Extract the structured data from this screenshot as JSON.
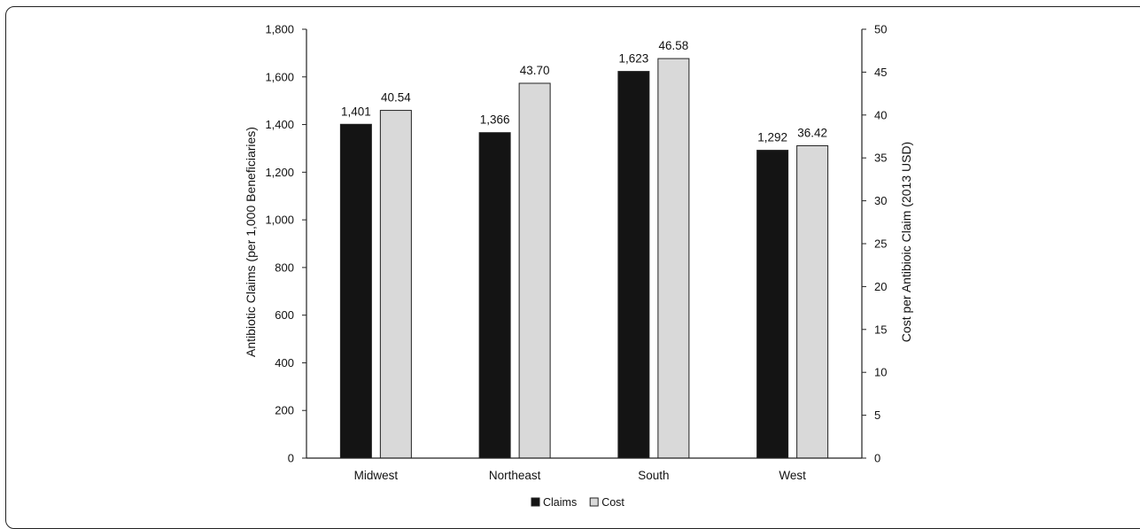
{
  "chart_data": {
    "type": "bar",
    "categories": [
      "Midwest",
      "Northeast",
      "South",
      "West"
    ],
    "series": [
      {
        "name": "Claims",
        "axis": "left",
        "color": "#141414",
        "values": [
          1401,
          1366,
          1623,
          1292
        ],
        "labels": [
          "1,401",
          "1,366",
          "1,623",
          "1,292"
        ]
      },
      {
        "name": "Cost",
        "axis": "right",
        "color": "#d9d9d9",
        "values": [
          40.54,
          43.7,
          46.58,
          36.42
        ],
        "labels": [
          "40.54",
          "43.70",
          "46.58",
          "36.42"
        ]
      }
    ],
    "ylabel": "Antibiotic Claims (per 1,000 Beneficiaries)",
    "y2label": "Cost per Antibioic Claim (2013 USD)",
    "ylim": [
      0,
      1800
    ],
    "y2lim": [
      0,
      50
    ],
    "yticks": [
      "0",
      "200",
      "400",
      "600",
      "800",
      "1,000",
      "1,200",
      "1,400",
      "1,600",
      "1,800"
    ],
    "y2ticks": [
      "0",
      "5",
      "10",
      "15",
      "20",
      "25",
      "30",
      "35",
      "40",
      "45",
      "50"
    ],
    "grid": false,
    "legend": "bottom-center"
  }
}
